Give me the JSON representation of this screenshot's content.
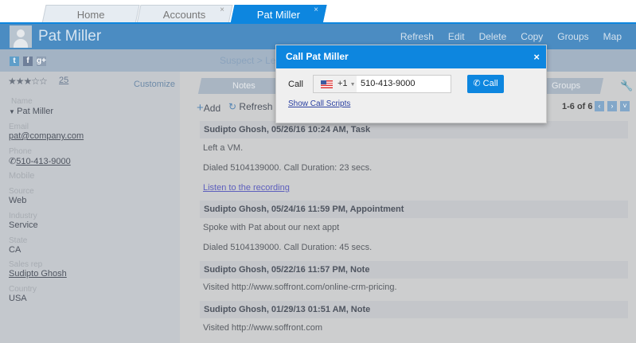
{
  "tabs": [
    {
      "label": "Home"
    },
    {
      "label": "Accounts",
      "close": "×"
    },
    {
      "label": "Pat Miller",
      "close": "×"
    }
  ],
  "header": {
    "title": "Pat Miller",
    "actions": [
      "Refresh",
      "Edit",
      "Delete",
      "Copy",
      "Groups",
      "Map"
    ]
  },
  "social": [
    "twitter",
    "facebook",
    "google-plus"
  ],
  "breadcrumb": {
    "text": "Suspect",
    "sep": ">",
    "next": "Le"
  },
  "profile": {
    "stars": "★★★☆☆",
    "rating_count": "25",
    "customize": "Customize",
    "fields": [
      {
        "label": "Name",
        "value": "Pat Miller"
      },
      {
        "label": "Email",
        "value": "pat@company.com"
      },
      {
        "label": "Phone",
        "value": "510-413-9000"
      },
      {
        "label": "Mobile",
        "value": ""
      },
      {
        "label": "Source",
        "value": "Web"
      },
      {
        "label": "Industry",
        "value": "Service"
      },
      {
        "label": "State",
        "value": "CA"
      },
      {
        "label": "Sales rep",
        "value": "Sudipto Ghosh"
      },
      {
        "label": "Country",
        "value": "USA"
      }
    ]
  },
  "notes_tabs": {
    "notes": "Notes",
    "groups": "Groups"
  },
  "toolbar": {
    "add": "Add",
    "refresh": "Refresh",
    "pagination": "1-6 of 6"
  },
  "notes": [
    {
      "header": "Sudipto Ghosh, 05/26/16 10:24 AM, Task",
      "lines": [
        "Left a VM.",
        "Dialed 5104139000. Call Duration: 23 secs."
      ],
      "link": "Listen to the recording"
    },
    {
      "header": "Sudipto Ghosh, 05/24/16 11:59 PM, Appointment",
      "lines": [
        "Spoke with Pat about our next appt",
        "Dialed 5104139000. Call Duration: 45 secs."
      ]
    },
    {
      "header": "Sudipto Ghosh, 05/22/16 11:57 PM, Note",
      "lines": [
        "Visited http://www.soffront.com/online-crm-pricing."
      ]
    },
    {
      "header": "Sudipto Ghosh, 01/29/13 01:51 AM, Note",
      "lines": [
        "Visited http://www.soffront.com"
      ]
    }
  ],
  "dialog": {
    "title": "Call Pat Miller",
    "close": "×",
    "label": "Call",
    "country_code": "+1",
    "phone": "510-413-9000",
    "call_button": "Call",
    "scripts_link": "Show Call Scripts"
  },
  "colors": {
    "accent": "#0d86df"
  }
}
